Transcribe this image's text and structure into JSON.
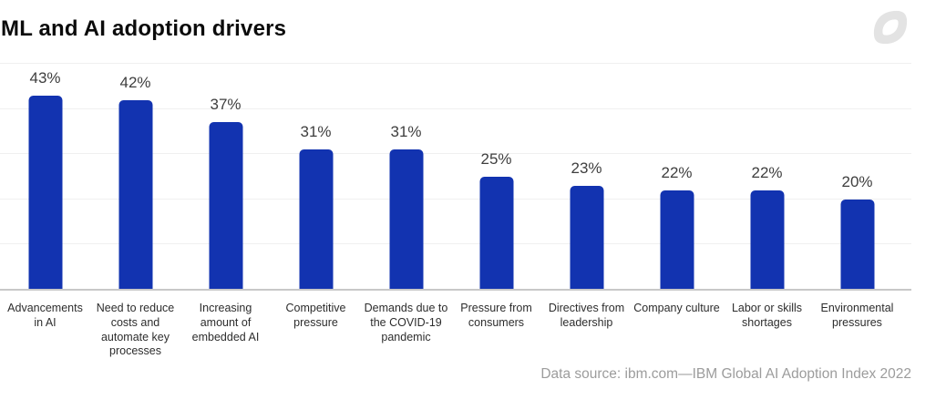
{
  "title": "ML and AI adoption drivers",
  "source_note": "Data source: ibm.com—IBM Global AI Adoption Index 2022",
  "colors": {
    "bar": "#1233b0",
    "gridline": "#f0f0f0",
    "baseline": "#c8c8c8",
    "title_text": "#0b0b0b",
    "value_label": "#3e3e3e",
    "category_label": "#2d2d2d",
    "source_text": "#9c9c9c",
    "logo": "#e3e3e3"
  },
  "chart_data": {
    "type": "bar",
    "title": "ML and AI adoption drivers",
    "categories": [
      "Advancements in AI",
      "Need to reduce costs and automate key processes",
      "Increasing amount of embedded AI",
      "Competitive pressure",
      "Demands due to the COVID-19 pandemic",
      "Pressure from consumers",
      "Directives from leadership",
      "Company culture",
      "Labor or skills shortages",
      "Environmental pressures"
    ],
    "values": [
      43,
      42,
      37,
      31,
      31,
      25,
      23,
      22,
      22,
      20
    ],
    "value_labels": [
      "43%",
      "42%",
      "37%",
      "31%",
      "31%",
      "25%",
      "23%",
      "22%",
      "22%",
      "20%"
    ],
    "xlabel": "",
    "ylabel": "",
    "ylim": [
      0,
      50
    ],
    "gridline_values": [
      10,
      20,
      30,
      40,
      50
    ],
    "grid": "horizontal",
    "legend_position": "none",
    "bar_color": "#1233b0"
  }
}
